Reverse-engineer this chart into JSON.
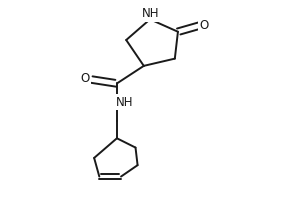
{
  "bg_color": "#ffffff",
  "line_color": "#1a1a1a",
  "line_width": 1.4,
  "font_size": 8.5,
  "xlim": [
    0.05,
    0.95
  ],
  "ylim": [
    0.01,
    0.97
  ]
}
